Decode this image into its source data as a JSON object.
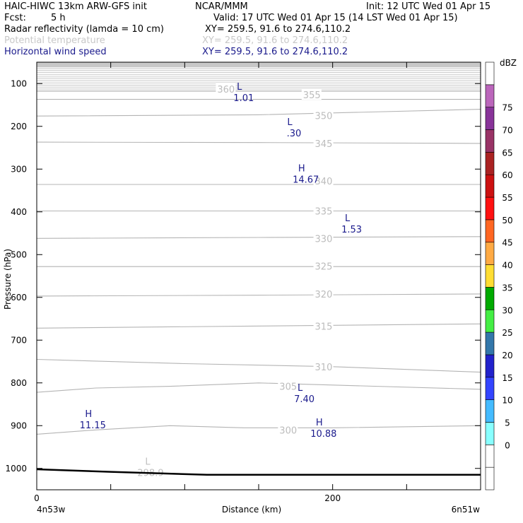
{
  "header": {
    "model": "HAIC-HIWC 13km ARW-GFS init",
    "org": "NCAR/MMM",
    "init": "Init: 12 UTC Wed 01 Apr 15",
    "fcst_label": "Fcst:",
    "fcst_value": "5 h",
    "valid": "Valid: 17 UTC Wed 01 Apr 15 (14 LST Wed 01 Apr 15)",
    "fields": [
      {
        "name": "Radar reflectivity (lamda = 10 cm)",
        "xy": "XY= 259.5, 91.6 to 274.6,110.2",
        "color": "#000000"
      },
      {
        "name": "Potential temperature",
        "xy": "XY= 259.5, 91.6 to 274.6,110.2",
        "color": "#c8c8c8"
      },
      {
        "name": "Horizontal wind speed",
        "xy": "XY= 259.5, 91.6 to 274.6,110.2",
        "color": "#1a1a8c"
      }
    ]
  },
  "chart_data": {
    "type": "contour-cross-section",
    "ylabel": "Pressure (hPa)",
    "xlabel": "Distance (km)",
    "x_left_label": "4n53w",
    "x_right_label": "6n51w",
    "x_ticks": [
      0,
      200
    ],
    "xlim": [
      0,
      300
    ],
    "y_ticks": [
      100,
      200,
      300,
      400,
      500,
      600,
      700,
      800,
      900,
      1000
    ],
    "ylim": [
      50,
      1050
    ],
    "theta_contours": [
      {
        "value": 300,
        "points": [
          [
            0,
            920
          ],
          [
            40,
            910
          ],
          [
            90,
            900
          ],
          [
            140,
            905
          ],
          [
            200,
            905
          ],
          [
            300,
            900
          ]
        ]
      },
      {
        "value": 305,
        "points": [
          [
            0,
            822
          ],
          [
            40,
            812
          ],
          [
            90,
            808
          ],
          [
            150,
            800
          ],
          [
            200,
            805
          ],
          [
            300,
            815
          ]
        ]
      },
      {
        "value": 310,
        "points": [
          [
            0,
            745
          ],
          [
            100,
            755
          ],
          [
            200,
            762
          ],
          [
            300,
            775
          ]
        ]
      },
      {
        "value": 315,
        "points": [
          [
            0,
            672
          ],
          [
            150,
            667
          ],
          [
            300,
            662
          ]
        ]
      },
      {
        "value": 320,
        "points": [
          [
            0,
            597
          ],
          [
            150,
            595
          ],
          [
            300,
            592
          ]
        ]
      },
      {
        "value": 325,
        "points": [
          [
            0,
            528
          ],
          [
            150,
            528
          ],
          [
            300,
            528
          ]
        ]
      },
      {
        "value": 330,
        "points": [
          [
            0,
            462
          ],
          [
            150,
            460
          ],
          [
            300,
            458
          ]
        ]
      },
      {
        "value": 335,
        "points": [
          [
            0,
            398
          ],
          [
            150,
            398
          ],
          [
            300,
            398
          ]
        ]
      },
      {
        "value": 340,
        "points": [
          [
            0,
            336
          ],
          [
            150,
            336
          ],
          [
            300,
            336
          ]
        ]
      },
      {
        "value": 345,
        "points": [
          [
            0,
            237
          ],
          [
            150,
            238
          ],
          [
            300,
            240
          ]
        ]
      },
      {
        "value": 350,
        "points": [
          [
            0,
            176
          ],
          [
            150,
            173
          ],
          [
            300,
            160
          ]
        ]
      },
      {
        "value": 355,
        "points": [
          [
            0,
            137
          ],
          [
            150,
            137
          ],
          [
            300,
            137
          ]
        ]
      },
      {
        "value": 360,
        "points": [
          [
            0,
            118
          ],
          [
            150,
            118
          ],
          [
            300,
            118
          ]
        ]
      }
    ],
    "theta_labels": [
      {
        "text": "360",
        "x": 122,
        "y": 113
      },
      {
        "text": "355",
        "x": 180,
        "y": 126
      },
      {
        "text": "350",
        "x": 188,
        "y": 175
      },
      {
        "text": "345",
        "x": 188,
        "y": 240
      },
      {
        "text": "340",
        "x": 188,
        "y": 328
      },
      {
        "text": "335",
        "x": 188,
        "y": 398
      },
      {
        "text": "330",
        "x": 188,
        "y": 462
      },
      {
        "text": "325",
        "x": 188,
        "y": 527
      },
      {
        "text": "320",
        "x": 188,
        "y": 592
      },
      {
        "text": "315",
        "x": 188,
        "y": 667
      },
      {
        "text": "310",
        "x": 188,
        "y": 762
      },
      {
        "text": "305",
        "x": 164,
        "y": 808
      },
      {
        "text": "300",
        "x": 164,
        "y": 910
      }
    ],
    "theta_extrema": [
      {
        "letter": "L",
        "value": "298.9",
        "x": 75,
        "y": 995
      }
    ],
    "wind_extrema": [
      {
        "letter": "L",
        "value": "1.01",
        "x": 137,
        "y": 118
      },
      {
        "letter": "L",
        "value": ".30",
        "x": 171,
        "y": 200
      },
      {
        "letter": "H",
        "value": "14.67",
        "x": 179,
        "y": 309
      },
      {
        "letter": "L",
        "value": "1.53",
        "x": 210,
        "y": 425
      },
      {
        "letter": "L",
        "value": "7.40",
        "x": 178,
        "y": 822
      },
      {
        "letter": "H",
        "value": "11.15",
        "x": 35,
        "y": 883
      },
      {
        "letter": "H",
        "value": "10.88",
        "x": 191,
        "y": 903
      }
    ],
    "surface_pressure": [
      [
        0,
        1002
      ],
      [
        50,
        1008
      ],
      [
        115,
        1015
      ],
      [
        300,
        1015
      ]
    ],
    "colorbar": {
      "unit": "dBZ",
      "levels": [
        -5,
        0,
        5,
        10,
        15,
        20,
        25,
        30,
        35,
        40,
        45,
        50,
        55,
        60,
        65,
        70,
        75
      ],
      "labels": [
        "0",
        "5",
        "10",
        "15",
        "20",
        "25",
        "30",
        "35",
        "40",
        "45",
        "50",
        "55",
        "60",
        "65",
        "70",
        "75"
      ],
      "colors": [
        "#ffffff",
        "#ffffff",
        "#88ffff",
        "#44bbff",
        "#3344ff",
        "#2222cc",
        "#3377aa",
        "#44ee44",
        "#00aa00",
        "#ffdd33",
        "#ffaa44",
        "#ff6622",
        "#ff1111",
        "#cc1111",
        "#aa2222",
        "#993366",
        "#883399",
        "#bb66bb",
        "#ffffff"
      ]
    }
  }
}
